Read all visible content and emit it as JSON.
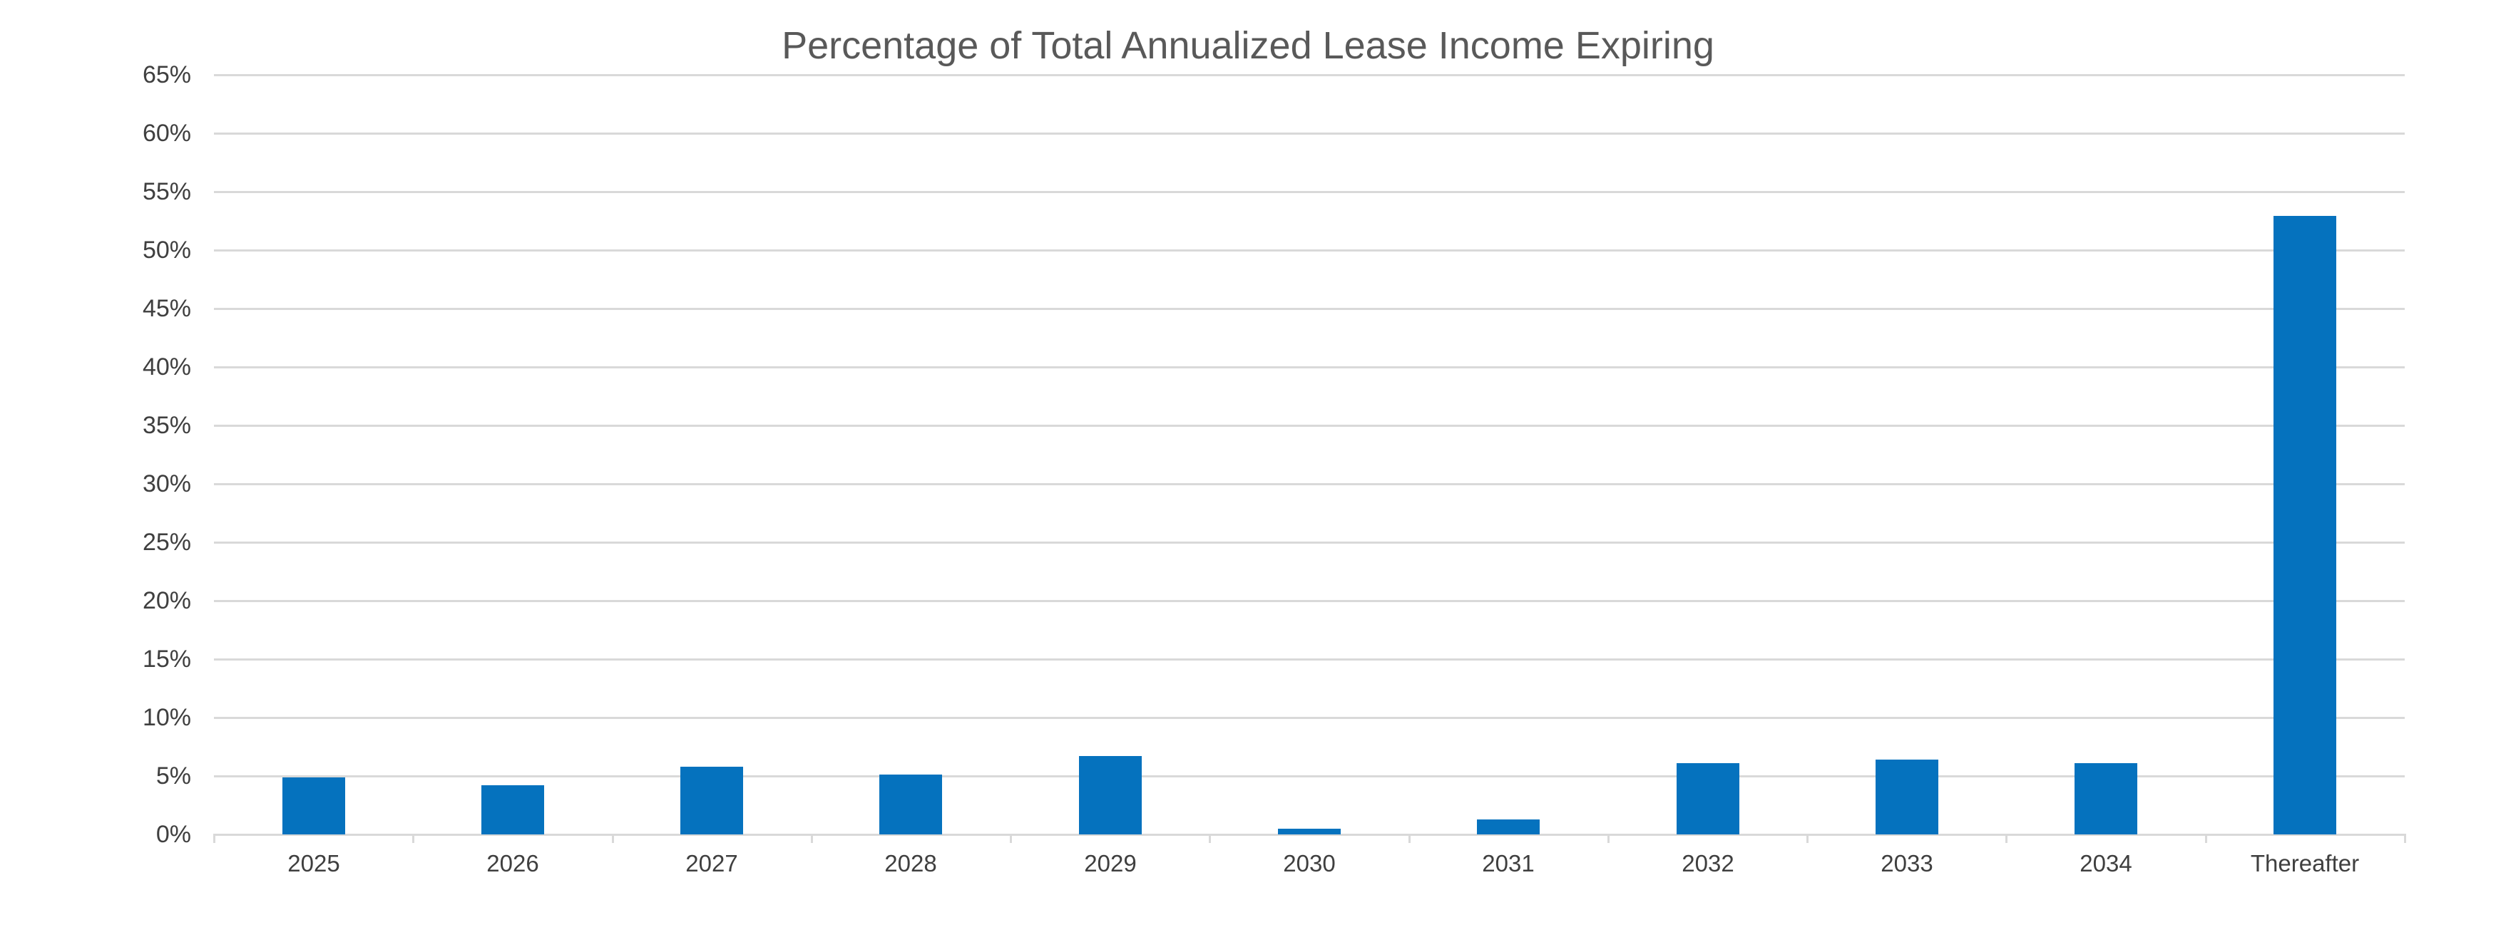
{
  "chart_data": {
    "type": "bar",
    "title": "Percentage of Total Annualized Lease Income Expiring",
    "categories": [
      "2025",
      "2026",
      "2027",
      "2028",
      "2029",
      "2030",
      "2031",
      "2032",
      "2033",
      "2034",
      "Thereafter"
    ],
    "values": [
      4.9,
      4.2,
      5.8,
      5.1,
      6.7,
      0.5,
      1.3,
      6.1,
      6.4,
      6.1,
      52.9
    ],
    "unit": "%",
    "xlabel": "",
    "ylabel": "",
    "ylim": [
      0,
      65
    ],
    "ytick_step": 5,
    "ytick_labels": [
      "0%",
      "5%",
      "10%",
      "15%",
      "20%",
      "25%",
      "30%",
      "35%",
      "40%",
      "45%",
      "50%",
      "55%",
      "60%",
      "65%"
    ],
    "grid": true,
    "legend_position": "none",
    "colors": {
      "bar": "#0572be",
      "gridline": "#d9d9d9",
      "axis_line": "#d9d9d9",
      "axis_label_text": "#3f3f3f",
      "title_text": "#595959",
      "background": "#ffffff"
    }
  }
}
